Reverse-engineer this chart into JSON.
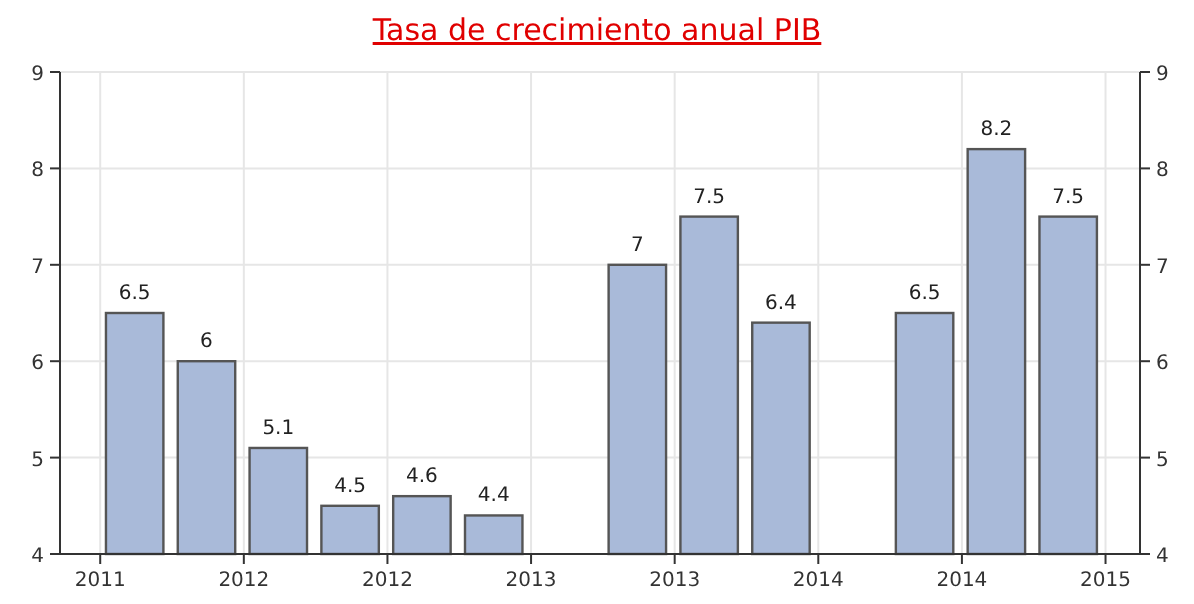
{
  "chart_data": {
    "type": "bar",
    "title": "Tasa de crecimiento anual PIB",
    "x": [
      2011.12,
      2011.37,
      2011.62,
      2011.87,
      2012.12,
      2012.37,
      2012.87,
      2013.12,
      2013.37,
      2013.87,
      2014.12,
      2014.37
    ],
    "values": [
      6.5,
      6,
      5.1,
      4.5,
      4.6,
      4.4,
      7,
      7.5,
      6.4,
      6.5,
      8.2,
      7.5
    ],
    "color": "#a9bad9",
    "xlim": [
      2010.86,
      2014.62
    ],
    "xticks": [
      {
        "value": 2011,
        "label": "2011"
      },
      {
        "value": 2011.5,
        "label": "2012"
      },
      {
        "value": 2012,
        "label": "2012"
      },
      {
        "value": 2012.5,
        "label": "2013"
      },
      {
        "value": 2013,
        "label": "2013"
      },
      {
        "value": 2013.5,
        "label": "2014"
      },
      {
        "value": 2014,
        "label": "2014"
      },
      {
        "value": 2014.5,
        "label": "2015"
      }
    ],
    "ylim": [
      4,
      9
    ],
    "yticks": [
      4,
      5,
      6,
      7,
      8,
      9
    ],
    "y2lim": [
      4,
      9
    ],
    "y2ticks": [
      4,
      5,
      6,
      7,
      8,
      9
    ],
    "grid": true,
    "data_labels": true
  }
}
